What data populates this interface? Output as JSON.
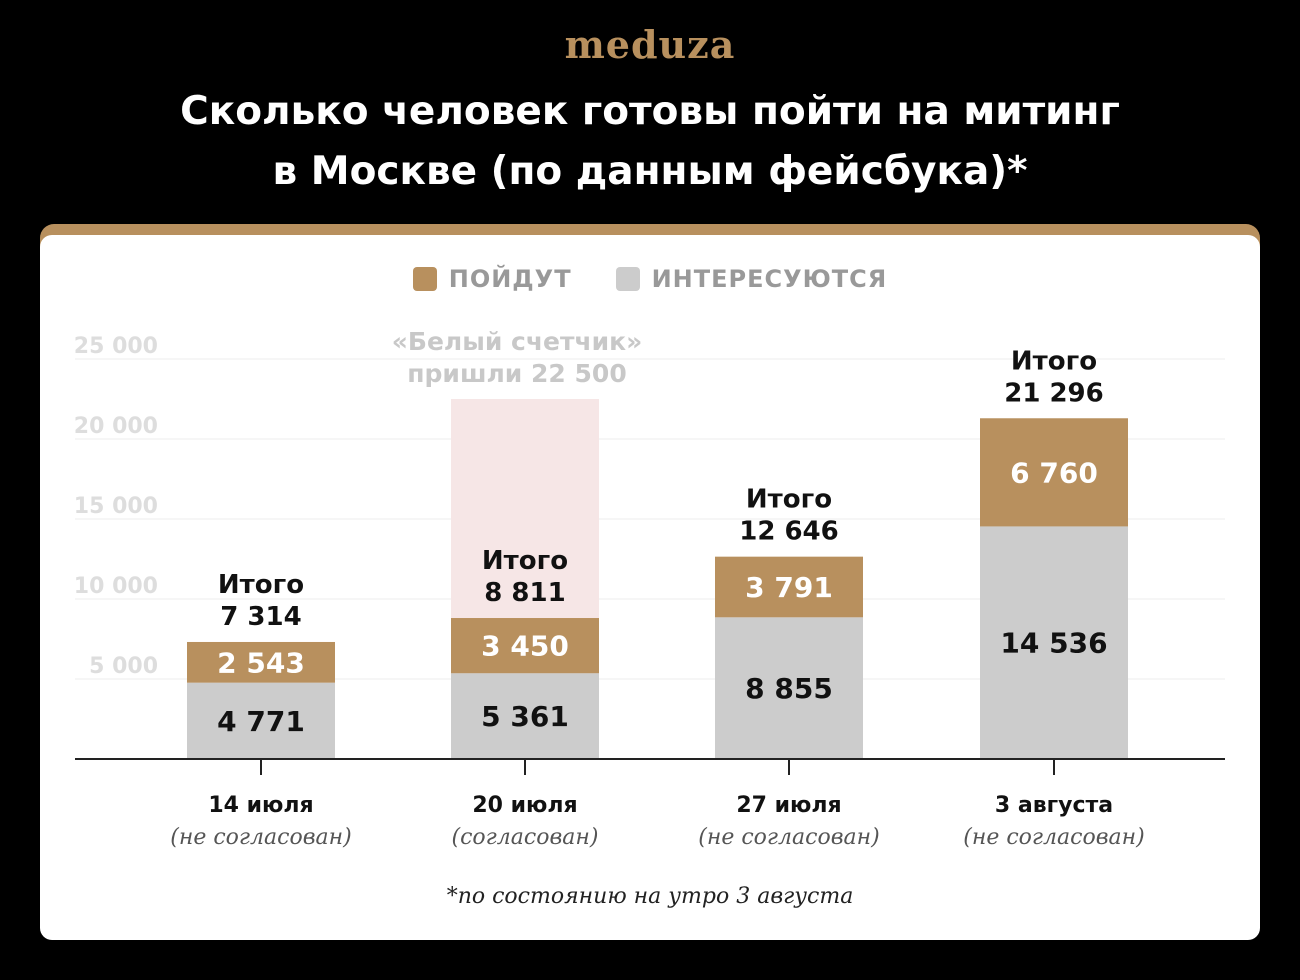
{
  "logo": "meduza",
  "title_line1": "Сколько человек готовы пойти на митинг",
  "title_line2": "в Москве (по данным фейсбука)*",
  "footnote": "*по состоянию на утро 3 августа",
  "colors": {
    "background": "#000000",
    "card": "#ffffff",
    "accent": "#b8905e",
    "interested": "#cccccc",
    "white_counter": "#f6e6e6",
    "axis_text": "#dddddd",
    "gridline": "#eeeeee"
  },
  "chart_data": {
    "type": "bar",
    "stacked": true,
    "ylim": [
      0,
      25000
    ],
    "yticks": [
      5000,
      10000,
      15000,
      20000,
      25000
    ],
    "ytick_labels": [
      "5 000",
      "10 000",
      "15 000",
      "20 000",
      "25 000"
    ],
    "legend": [
      "ПОЙДУТ",
      "ИНТЕРЕСУЮТСЯ"
    ],
    "legend_position": "top-center",
    "grid": true,
    "categories": [
      "14 июля",
      "20 июля",
      "27 июля",
      "3 августа"
    ],
    "category_notes": [
      "(не согласован)",
      "(согласован)",
      "(не согласован)",
      "(не согласован)"
    ],
    "series": [
      {
        "name": "ИНТЕРЕСУЮТСЯ",
        "values": [
          4771,
          5361,
          8855,
          14536
        ],
        "labels": [
          "4 771",
          "5 361",
          "8 855",
          "14 536"
        ]
      },
      {
        "name": "ПОЙДУТ",
        "values": [
          2543,
          3450,
          3791,
          6760
        ],
        "labels": [
          "2 543",
          "3 450",
          "3 791",
          "6 760"
        ]
      }
    ],
    "totals": [
      7314,
      8811,
      12646,
      21296
    ],
    "total_word": "Итого",
    "total_labels": [
      "7 314",
      "8 811",
      "12 646",
      "21 296"
    ],
    "annotation": {
      "category_index": 1,
      "value": 22500,
      "line1": "«Белый счетчик»",
      "line2": "пришли 22 500"
    }
  }
}
